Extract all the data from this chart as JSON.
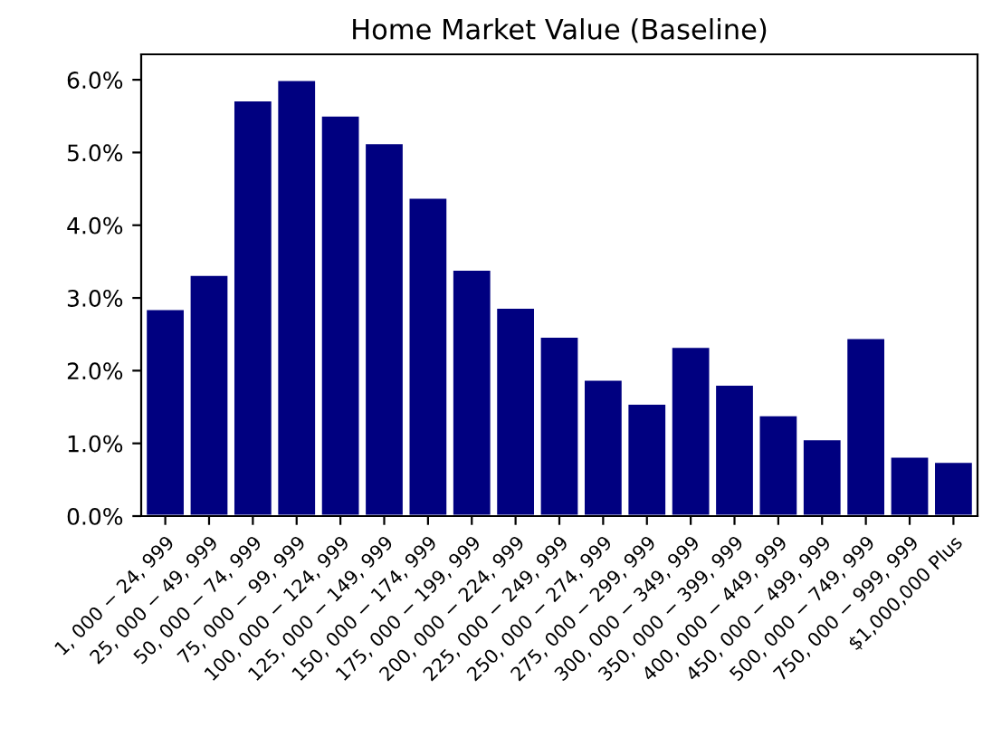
{
  "chart_data": {
    "type": "bar",
    "title": "Home Market Value (Baseline)",
    "categories": [
      "1, 000 − 24, 999",
      "25, 000 − 49, 999",
      "50, 000 − 74, 999",
      "75, 000 − 99, 999",
      "100, 000 − 124, 999",
      "125, 000 − 149, 999",
      "150, 000 − 174, 999",
      "175, 000 − 199, 999",
      "200, 000 − 224, 999",
      "225, 000 − 249, 999",
      "250, 000 − 274, 999",
      "275, 000 − 299, 999",
      "300, 000 − 349, 999",
      "350, 000 − 399, 999",
      "400, 000 − 449, 999",
      "450, 000 − 499, 999",
      "500, 000 − 749, 999",
      "750, 000 − 999, 999",
      "$1,000,000 Plus"
    ],
    "values": [
      2.85,
      3.32,
      5.72,
      6.0,
      5.51,
      5.13,
      4.38,
      3.39,
      2.87,
      2.47,
      1.88,
      1.55,
      2.33,
      1.81,
      1.39,
      1.06,
      2.45,
      0.82,
      0.75
    ],
    "color": "#000080",
    "ylim": [
      0,
      6.35
    ],
    "yticks": [
      {
        "value": 0,
        "label": "0.0%"
      },
      {
        "value": 1,
        "label": "1.0%"
      },
      {
        "value": 2,
        "label": "2.0%"
      },
      {
        "value": 3,
        "label": "3.0%"
      },
      {
        "value": 4,
        "label": "4.0%"
      },
      {
        "value": 5,
        "label": "5.0%"
      },
      {
        "value": 6,
        "label": "6.0%"
      }
    ],
    "grid": false,
    "legend": false
  }
}
